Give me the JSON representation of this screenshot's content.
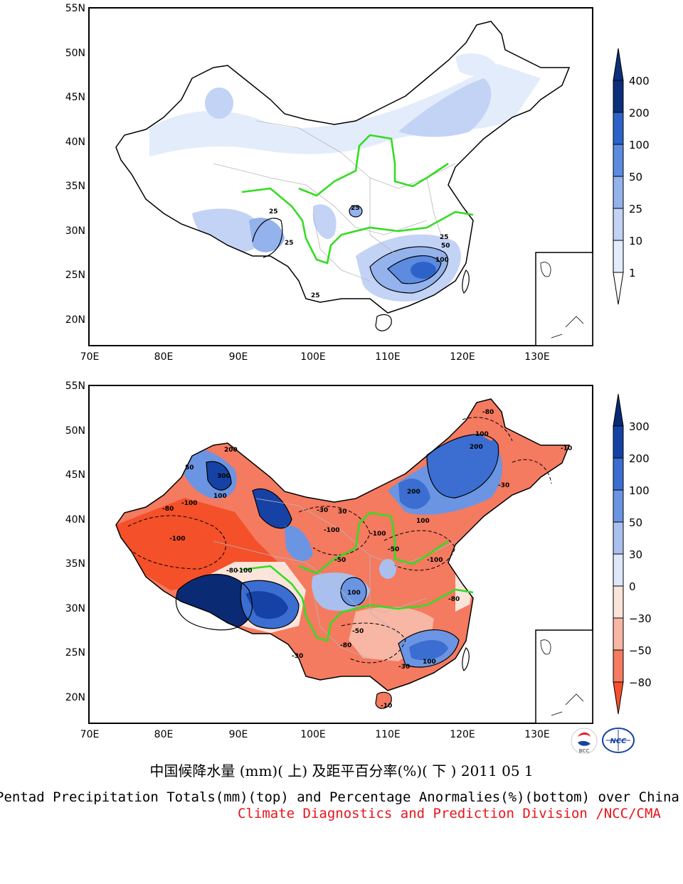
{
  "colors": {
    "precip_scale": [
      "#ffffff",
      "#e3ecfb",
      "#c3d3f5",
      "#94b2ec",
      "#5c8be0",
      "#2d63c8",
      "#0b2f7a"
    ],
    "anomaly_scale": [
      "#f4502a",
      "#f47a60",
      "#f8b6a4",
      "#fbe4da",
      "#dfe8f8",
      "#a9c0ef",
      "#6b95e3",
      "#3b6ed0",
      "#1742a5",
      "#0a2a73"
    ],
    "river": "#33dd22",
    "boundary": "#000000",
    "province": "#b8b8b8",
    "credit": "#e8141c"
  },
  "maps": [
    {
      "id": "top",
      "lat_ticks": [
        "55N",
        "50N",
        "45N",
        "40N",
        "35N",
        "30N",
        "25N",
        "20N"
      ],
      "lon_ticks": [
        "70E",
        "80E",
        "90E",
        "100E",
        "110E",
        "120E",
        "130E"
      ],
      "contour_labels": [
        "25",
        "25",
        "25",
        "25",
        "25",
        "50",
        "100"
      ],
      "colorbar": {
        "labels": [
          "400",
          "200",
          "100",
          "50",
          "25",
          "10",
          "1"
        ]
      }
    },
    {
      "id": "bottom",
      "lat_ticks": [
        "55N",
        "50N",
        "45N",
        "40N",
        "35N",
        "30N",
        "25N",
        "20N"
      ],
      "lon_ticks": [
        "70E",
        "80E",
        "90E",
        "100E",
        "110E",
        "120E",
        "130E"
      ],
      "contour_labels": [
        "300",
        "200",
        "100",
        "50",
        "-80",
        "-100",
        "-100",
        "-80",
        "-100",
        "-30",
        "-50",
        "-100",
        "-80",
        "200",
        "100",
        "-30",
        "100",
        "100",
        "-100",
        "-50",
        "-50",
        "-80",
        "-30",
        "-30",
        "-10",
        "30",
        "-100",
        "-80",
        "200",
        "100",
        "-10"
      ],
      "colorbar": {
        "labels": [
          "300",
          "200",
          "100",
          "50",
          "30",
          "0",
          "−30",
          "−50",
          "−80"
        ]
      }
    }
  ],
  "logos": {
    "bcc": "BCC",
    "ncc": "NCC"
  },
  "caption": {
    "cn": "中国候降水量 (mm)( 上) 及距平百分率(%)( 下 ) 2011 05 1",
    "en": "Pentad Precipitation Totals(mm)(top) and Percentage Anormalies(%)(bottom) over China",
    "credit": "Climate Diagnostics and Prediction Division /NCC/CMA"
  }
}
